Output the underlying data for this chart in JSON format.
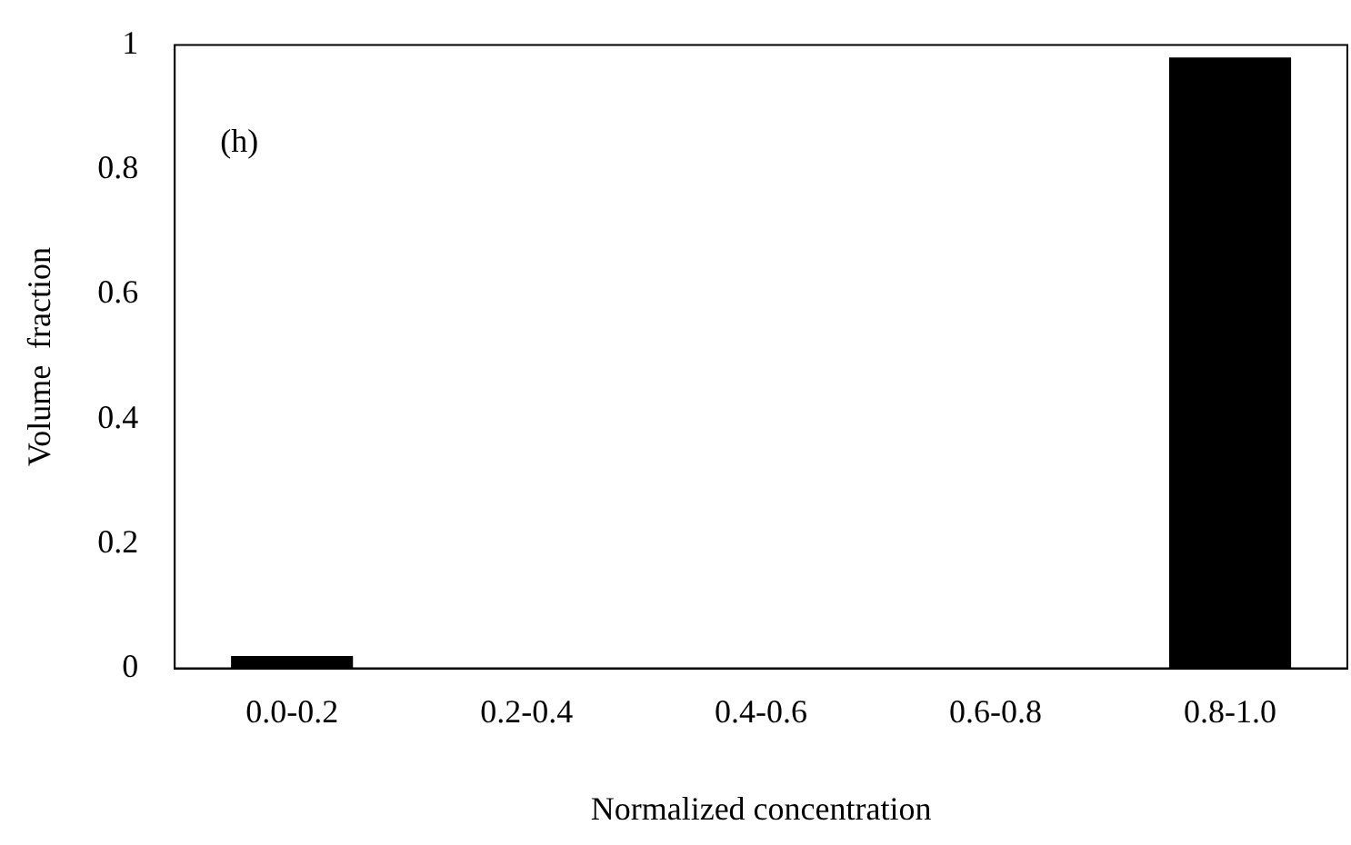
{
  "chart_data": {
    "type": "bar",
    "xlabel": "Normalized concentration",
    "ylabel": "Volume  fraction",
    "categories": [
      "0.0-0.2",
      "0.2-0.4",
      "0.4-0.6",
      "0.6-0.8",
      "0.8-1.0"
    ],
    "values": [
      0.02,
      0,
      0,
      0,
      0.98
    ],
    "color": "#000000",
    "ylim": [
      0,
      1
    ],
    "yticks": [
      0,
      0.2,
      0.4,
      0.6,
      0.8,
      1
    ],
    "grid": false,
    "legend": false,
    "annotations": [
      "(h)"
    ]
  }
}
